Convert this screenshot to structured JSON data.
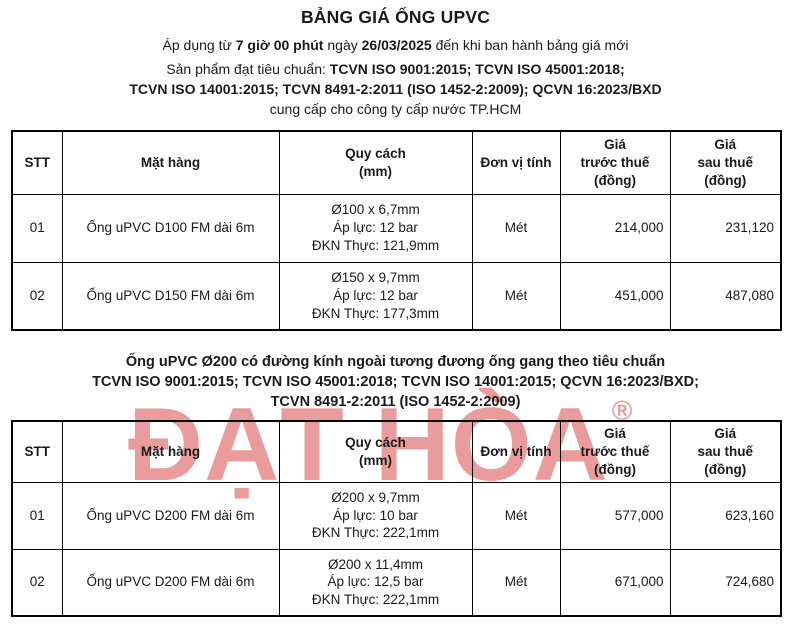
{
  "header": {
    "title": "BẢNG GIÁ ỐNG UPVC",
    "apply": {
      "pre": "Áp dụng từ ",
      "time": "7 giờ 00 phút",
      "mid": " ngày ",
      "date": "26/03/2025",
      "post": " đến khi ban hành bảng giá mới"
    },
    "standards": {
      "prefix": "Sản phẩm đạt tiêu chuẩn: ",
      "line1_bold": "TCVN ISO 9001:2015; TCVN ISO 45001:2018;",
      "line2_bold": "TCVN ISO 14001:2015; TCVN 8491-2:2011 (ISO 1452-2:2009); QCVN 16:2023/BXD",
      "supply": "cung cấp cho công ty cấp nước TP.HCM"
    }
  },
  "columns": {
    "stt": "STT",
    "item": "Mặt hàng",
    "spec_line1": "Quy cách",
    "spec_line2": "(mm)",
    "unit": "Đơn vị tính",
    "price_before_line1": "Giá",
    "price_before_line2": "trước thuế",
    "price_before_line3": "(đồng)",
    "price_after_line1": "Giá",
    "price_after_line2": "sau thuế",
    "price_after_line3": "(đồng)"
  },
  "table1": {
    "rows": [
      {
        "stt": "01",
        "item": "Ống uPVC D100 FM dài 6m",
        "spec1": "Ø100 x 6,7mm",
        "spec2": "Áp lực: 12 bar",
        "spec3": "ĐKN Thực: 121,9mm",
        "unit": "Mét",
        "price_before": "214,000",
        "price_after": "231,120"
      },
      {
        "stt": "02",
        "item": "Ống uPVC D150 FM dài 6m",
        "spec1": "Ø150 x 9,7mm",
        "spec2": "Áp lực: 12 bar",
        "spec3": "ĐKN Thực: 177,3mm",
        "unit": "Mét",
        "price_before": "451,000",
        "price_after": "487,080"
      }
    ]
  },
  "section2_heading": {
    "line1": "Ống uPVC Ø200 có đường kính ngoài tương đương ống gang theo tiêu chuẩn",
    "line2": "TCVN ISO 9001:2015; TCVN ISO 45001:2018; TCVN ISO 14001:2015; QCVN 16:2023/BXD;",
    "line3": "TCVN 8491-2:2011 (ISO 1452-2:2009)"
  },
  "table2": {
    "rows": [
      {
        "stt": "01",
        "item": "Ống uPVC D200 FM dài 6m",
        "spec1": "Ø200 x 9,7mm",
        "spec2": "Áp lực: 10 bar",
        "spec3": "ĐKN Thực: 222,1mm",
        "unit": "Mét",
        "price_before": "577,000",
        "price_after": "623,160"
      },
      {
        "stt": "02",
        "item": "Ống uPVC D200 FM dài 6m",
        "spec1": "Ø200 x 11,4mm",
        "spec2": "Áp lực: 12,5 bar",
        "spec3": "ĐKN Thực: 222,1mm",
        "unit": "Mét",
        "price_before": "671,000",
        "price_after": "724,680"
      }
    ]
  },
  "watermark": {
    "brand": "ĐẠT HÒA",
    "registered_mark": "®",
    "color": "#d53737"
  }
}
